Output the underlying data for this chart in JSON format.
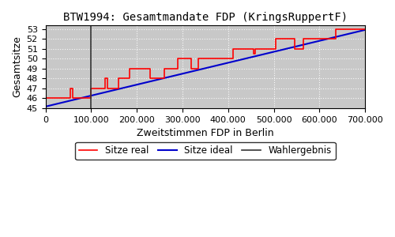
{
  "title": "BTW1994: Gesamtmandate FDP (KringsRuppertF)",
  "xlabel": "Zweitstimmen FDP in Berlin",
  "ylabel": "Gesamtsitze",
  "xlim": [
    0,
    700000
  ],
  "ylim": [
    45,
    53.4
  ],
  "yticks": [
    45,
    46,
    47,
    48,
    49,
    50,
    51,
    52,
    53
  ],
  "xticks": [
    0,
    100000,
    200000,
    300000,
    400000,
    500000,
    600000,
    700000
  ],
  "wahlergebnis_x": 100000,
  "background_color": "#c8c8c8",
  "ideal_color": "#0000cc",
  "real_color": "#ff0000",
  "wahlergebnis_color": "#333333",
  "legend_labels": [
    "Sitze real",
    "Sitze ideal",
    "Wahlergebnis"
  ],
  "ideal_line": {
    "x": [
      0,
      700000
    ],
    "y": [
      45.15,
      52.9
    ]
  },
  "real_steps": [
    [
      0,
      45.0
    ],
    [
      10000,
      46.0
    ],
    [
      55000,
      46.0
    ],
    [
      60000,
      47.0
    ],
    [
      80000,
      46.0
    ],
    [
      100000,
      46.0
    ],
    [
      105000,
      47.0
    ],
    [
      130000,
      47.0
    ],
    [
      135000,
      48.0
    ],
    [
      160000,
      47.0
    ],
    [
      165000,
      48.0
    ],
    [
      185000,
      48.0
    ],
    [
      195000,
      49.0
    ],
    [
      230000,
      49.0
    ],
    [
      240000,
      48.0
    ],
    [
      260000,
      48.0
    ],
    [
      270000,
      49.0
    ],
    [
      290000,
      49.0
    ],
    [
      295000,
      50.0
    ],
    [
      320000,
      50.0
    ],
    [
      325000,
      49.0
    ],
    [
      335000,
      49.0
    ],
    [
      340000,
      50.0
    ],
    [
      410000,
      50.0
    ],
    [
      420000,
      51.0
    ],
    [
      455000,
      51.0
    ],
    [
      460000,
      50.5
    ],
    [
      465000,
      51.0
    ],
    [
      505000,
      51.0
    ],
    [
      510000,
      52.0
    ],
    [
      545000,
      52.0
    ],
    [
      550000,
      51.0
    ],
    [
      565000,
      51.0
    ],
    [
      570000,
      52.0
    ],
    [
      635000,
      52.0
    ],
    [
      640000,
      53.0
    ],
    [
      700000,
      53.0
    ]
  ]
}
